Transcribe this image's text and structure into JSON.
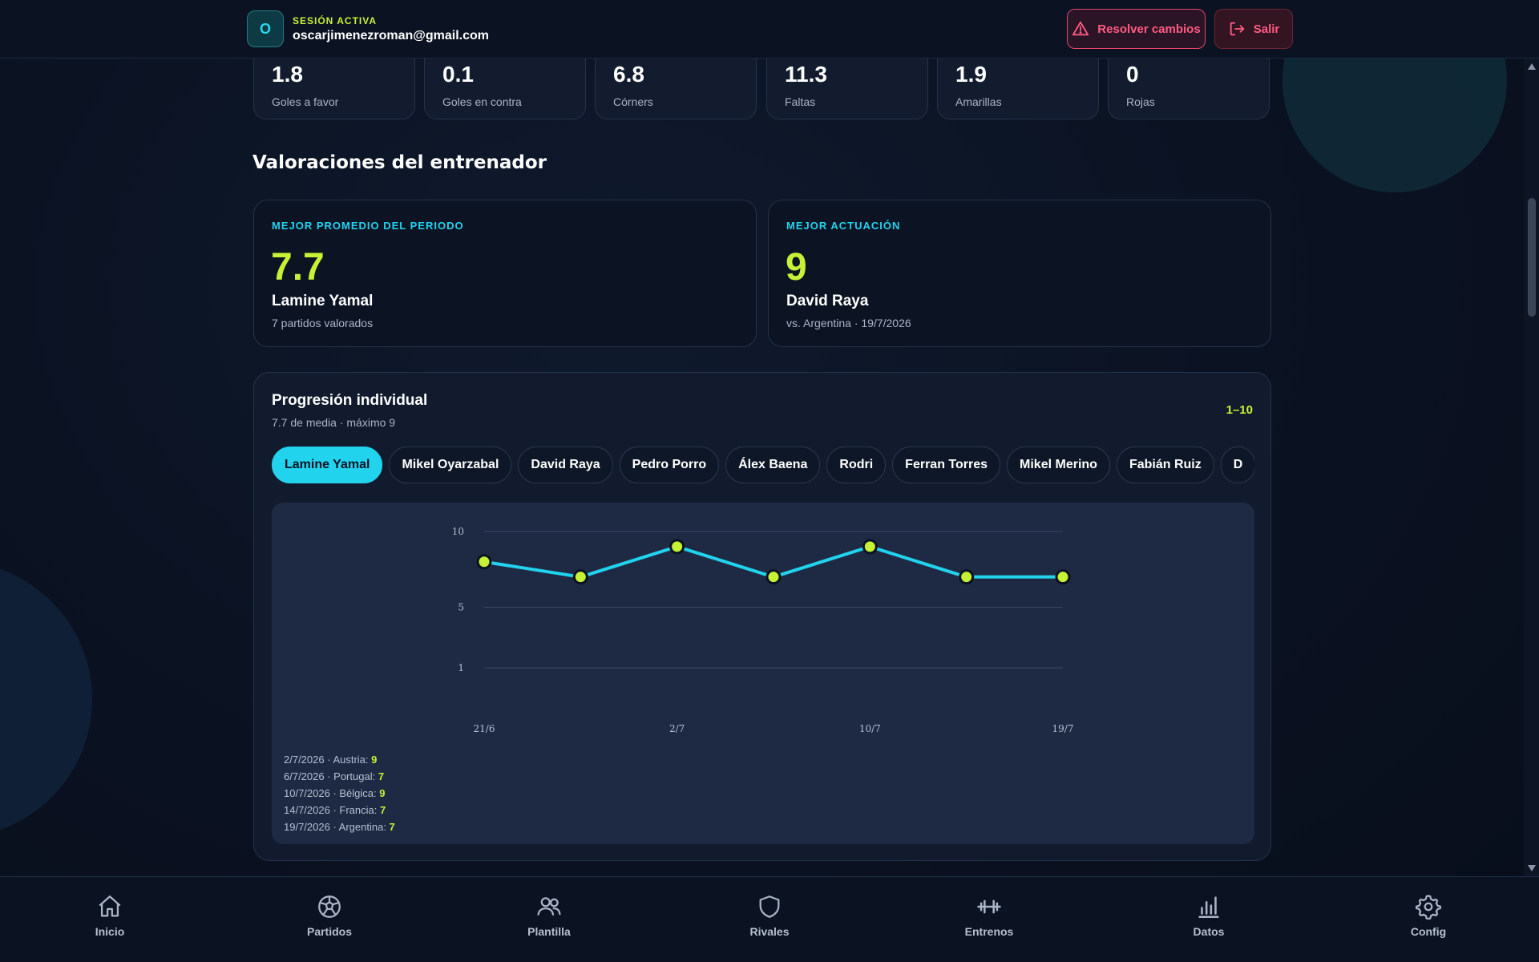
{
  "header": {
    "avatar_initial": "O",
    "session_label": "SESIÓN ACTIVA",
    "email": "oscarjimenezroman@gmail.com",
    "resolve_label": "Resolver cambios",
    "exit_label": "Salir"
  },
  "stats": [
    {
      "value": "1.8",
      "label": "Goles a favor"
    },
    {
      "value": "0.1",
      "label": "Goles en contra"
    },
    {
      "value": "6.8",
      "label": "Córners"
    },
    {
      "value": "11.3",
      "label": "Faltas"
    },
    {
      "value": "1.9",
      "label": "Amarillas"
    },
    {
      "value": "0",
      "label": "Rojas"
    }
  ],
  "ratings": {
    "section_title": "Valoraciones del entrenador",
    "best_average": {
      "label": "MEJOR PROMEDIO DEL PERIODO",
      "value": "7.7",
      "name": "Lamine Yamal",
      "sub": "7 partidos valorados"
    },
    "best_performance": {
      "label": "MEJOR ACTUACIÓN",
      "value": "9",
      "name": "David Raya",
      "sub": "vs. Argentina · 19/7/2026"
    }
  },
  "progression": {
    "title": "Progresión individual",
    "subtitle": "7.7 de media · máximo 9",
    "range": "1–10",
    "players": [
      "Lamine Yamal",
      "Mikel Oyarzabal",
      "David Raya",
      "Pedro Porro",
      "Álex Baena",
      "Rodri",
      "Ferran Torres",
      "Mikel Merino",
      "Fabián Ruiz",
      "D"
    ],
    "active_player": "Lamine Yamal",
    "log": [
      {
        "text": "2/7/2026 · Austria: ",
        "value": "9"
      },
      {
        "text": "6/7/2026 · Portugal: ",
        "value": "7"
      },
      {
        "text": "10/7/2026 · Bélgica: ",
        "value": "9"
      },
      {
        "text": "14/7/2026 · Francia: ",
        "value": "7"
      },
      {
        "text": "19/7/2026 · Argentina: ",
        "value": "7"
      }
    ]
  },
  "chart_data": {
    "type": "line",
    "x": [
      "21/6",
      "",
      "2/7",
      "",
      "10/7",
      "",
      "19/7"
    ],
    "x_tick_labels": [
      "21/6",
      "2/7",
      "10/7",
      "19/7"
    ],
    "values": [
      8,
      7,
      9,
      7,
      9,
      7,
      7
    ],
    "y_ticks": [
      1,
      5,
      10
    ],
    "ylim": [
      1,
      10
    ],
    "line_color": "#22d3ee",
    "point_color": "#c6f135",
    "grid": true
  },
  "nav": [
    {
      "label": "Inicio",
      "icon": "home-icon"
    },
    {
      "label": "Partidos",
      "icon": "soccer-ball-icon"
    },
    {
      "label": "Plantilla",
      "icon": "users-icon"
    },
    {
      "label": "Rivales",
      "icon": "shield-icon"
    },
    {
      "label": "Entrenos",
      "icon": "dumbbell-icon"
    },
    {
      "label": "Datos",
      "icon": "bar-chart-icon"
    },
    {
      "label": "Config",
      "icon": "gear-icon"
    }
  ],
  "colors": {
    "accent_cyan": "#22d3ee",
    "accent_lime": "#c6f135",
    "danger": "#ff5b82"
  }
}
